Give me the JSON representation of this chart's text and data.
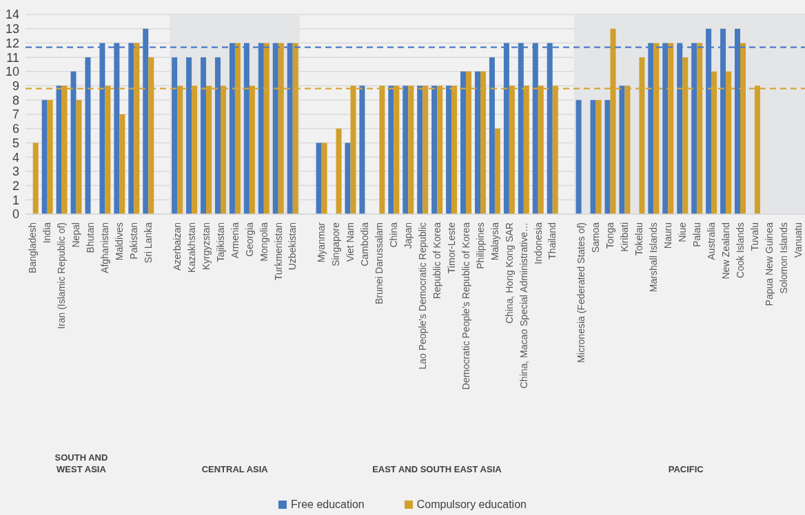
{
  "chart_data": {
    "type": "bar",
    "categories": [
      "Bangladesh",
      "India",
      "Iran (Islamic Republic of)",
      "Nepal",
      "Bhutan",
      "Afghanistan",
      "Maldives",
      "Pakistan",
      "Sri Lanka",
      null,
      "Azerbaizan",
      "Kazakhstan",
      "Kyrgyzstan",
      "Tajikistan",
      "Armenia",
      "Georgia",
      "Mongolia",
      "Turkmenistan",
      "Uzbekistan",
      null,
      "Myanmar",
      "Singapore",
      "Viet Nam",
      "Cambodia",
      "Brunei Darussalam",
      "China",
      "Japan",
      "Lao People's Democratic Republic",
      "Republic of Korea",
      "Timor-Leste",
      "Democratic People's Republic of Korea",
      "Philippines",
      "Malaysia",
      "China, Hong Kong SAR",
      "China, Macao Special Administrative…",
      "Indonesia",
      "Thailand",
      null,
      "Micronesia (Federated States of)",
      "Samoa",
      "Tonga",
      "Kiribati",
      "Tokelau",
      "Marshall Islands",
      "Nauru",
      "Niue",
      "Palau",
      "Australia",
      "New Zealand",
      "Cook Islands",
      "Tuvalu",
      "Papua New Guinea",
      "Solomon Islands",
      "Vanuatu"
    ],
    "series": [
      {
        "name": "Free education",
        "color": "#4679be",
        "values": [
          null,
          8,
          9,
          10,
          11,
          12,
          12,
          12,
          13,
          null,
          11,
          11,
          11,
          11,
          12,
          12,
          12,
          12,
          12,
          null,
          5,
          null,
          5,
          9,
          null,
          9,
          9,
          9,
          9,
          9,
          10,
          10,
          11,
          12,
          12,
          12,
          12,
          null,
          8,
          8,
          8,
          9,
          null,
          12,
          12,
          12,
          12,
          13,
          13,
          13,
          null,
          null,
          null,
          null
        ]
      },
      {
        "name": "Compulsory education",
        "color": "#d19f2c",
        "values": [
          5,
          8,
          9,
          8,
          null,
          9,
          7,
          12,
          11,
          null,
          9,
          9,
          9,
          9,
          12,
          9,
          12,
          12,
          12,
          null,
          5,
          6,
          9,
          null,
          9,
          9,
          9,
          9,
          9,
          9,
          10,
          10,
          6,
          9,
          9,
          9,
          9,
          null,
          null,
          8,
          13,
          9,
          11,
          12,
          12,
          11,
          12,
          10,
          10,
          12,
          9,
          null,
          null,
          null
        ]
      }
    ],
    "ylim": [
      0,
      14
    ],
    "yticks": [
      0,
      1,
      2,
      3,
      4,
      5,
      6,
      7,
      8,
      9,
      10,
      11,
      12,
      13,
      14
    ],
    "grid": "y",
    "legend": "bottom",
    "ref_lines": [
      {
        "axis": "y",
        "value": 11.7,
        "color": "#4a7bc7",
        "line_style": "dashed"
      },
      {
        "axis": "y",
        "value": 8.8,
        "color": "#d6a536",
        "line_style": "dashed"
      }
    ],
    "bands": [
      {
        "axis": "x",
        "from": "Azerbaizan",
        "to": "Uzbekistan",
        "color": "#e4e5e7"
      },
      {
        "axis": "x",
        "from": "Micronesia (Federated States of)",
        "to": "Vanuatu",
        "color": "#e4e5e7"
      }
    ],
    "annotations": [
      "SOUTH AND\nWEST ASIA",
      "CENTRAL ASIA",
      "EAST AND SOUTH EAST ASIA",
      "PACIFIC"
    ]
  }
}
